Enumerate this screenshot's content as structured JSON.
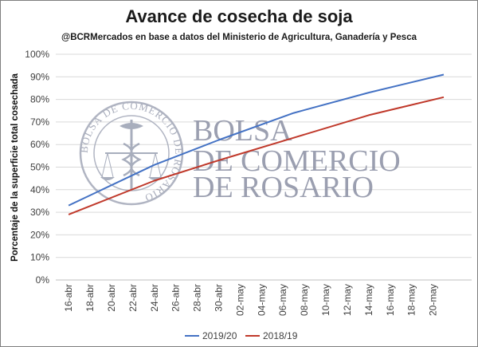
{
  "chart_data": {
    "type": "line",
    "title": "Avance de cosecha de soja",
    "subtitle": "@BCRMercados  en base a datos del Ministerio de Agricultura,  Ganadería y Pesca",
    "ylabel": "Porcentaje de la superficie total cosechada",
    "xlabel": "",
    "ylim": [
      0,
      100
    ],
    "yticks": [
      "0%",
      "10%",
      "20%",
      "30%",
      "40%",
      "50%",
      "60%",
      "70%",
      "80%",
      "90%",
      "100%"
    ],
    "categories": [
      "16-abr",
      "18-abr",
      "20-abr",
      "22-abr",
      "24-abr",
      "26-abr",
      "28-abr",
      "30-abr",
      "02-may",
      "04-may",
      "06-may",
      "08-may",
      "10-may",
      "12-may",
      "14-may",
      "16-may",
      "18-may",
      "20-may"
    ],
    "x_days": [
      0,
      2,
      4,
      6,
      8,
      10,
      12,
      14,
      16,
      18,
      20,
      22,
      24,
      26,
      28,
      30,
      32,
      34
    ],
    "grid": true,
    "legend_position": "bottom",
    "series": [
      {
        "name": "2019/20",
        "color": "#4472c4",
        "points": [
          [
            0,
            33
          ],
          [
            8,
            51
          ],
          [
            14,
            62
          ],
          [
            21,
            74
          ],
          [
            28,
            83
          ],
          [
            35,
            91
          ]
        ]
      },
      {
        "name": "2018/19",
        "color": "#c0392b",
        "points": [
          [
            0,
            29
          ],
          [
            8,
            44
          ],
          [
            14,
            53
          ],
          [
            21,
            63
          ],
          [
            28,
            73
          ],
          [
            35,
            81
          ]
        ]
      }
    ]
  },
  "watermark": {
    "lines": [
      "BOLSA",
      "DE COMERCIO",
      "DE ROSARIO"
    ],
    "seal_text": "BOLSA DE COMERCIO DE ROSARIO"
  }
}
